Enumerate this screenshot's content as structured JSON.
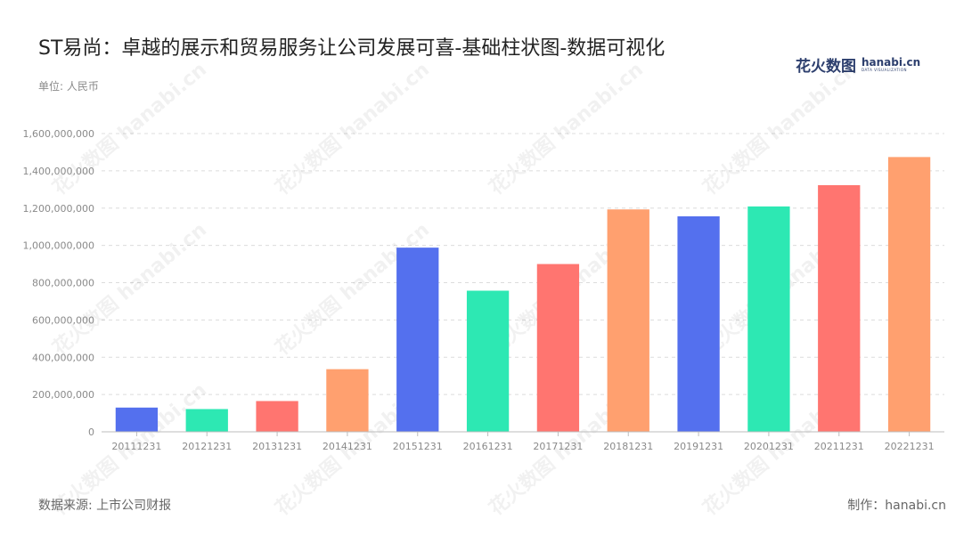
{
  "title": "ST易尚：卓越的展示和贸易服务让公司发展可喜-基础柱状图-数据可视化",
  "unit": "单位: 人民币",
  "logo": {
    "cn": "花火数图",
    "en": "hanabi.cn",
    "en_sub": "DATA VISUALIZATION"
  },
  "watermark": "花火数图 hanabi.cn",
  "source": "数据来源: 上市公司财报",
  "credit": "制作：hanabi.cn",
  "chart_data": {
    "type": "bar",
    "categories": [
      "20111231",
      "20121231",
      "20131231",
      "20141231",
      "20151231",
      "20161231",
      "20171231",
      "20181231",
      "20191231",
      "20201231",
      "20211231",
      "20221231"
    ],
    "values": [
      130000000,
      122000000,
      165000000,
      336000000,
      988000000,
      757000000,
      900000000,
      1193000000,
      1156000000,
      1209000000,
      1323000000,
      1474000000
    ],
    "ylim": [
      0,
      1600000000
    ],
    "yticks": [
      0,
      200000000,
      400000000,
      600000000,
      800000000,
      1000000000,
      1200000000,
      1400000000,
      1600000000
    ],
    "ytick_labels": [
      "0",
      "200,000,000",
      "400,000,000",
      "600,000,000",
      "800,000,000",
      "1,000,000,000",
      "1,200,000,000",
      "1,400,000,000",
      "1,600,000,000"
    ],
    "colors": [
      "#5470ee",
      "#2de8b3",
      "#ff7570",
      "#ffa06f"
    ],
    "grid": "horizontal-dashed",
    "xlabel": "",
    "ylabel": ""
  }
}
